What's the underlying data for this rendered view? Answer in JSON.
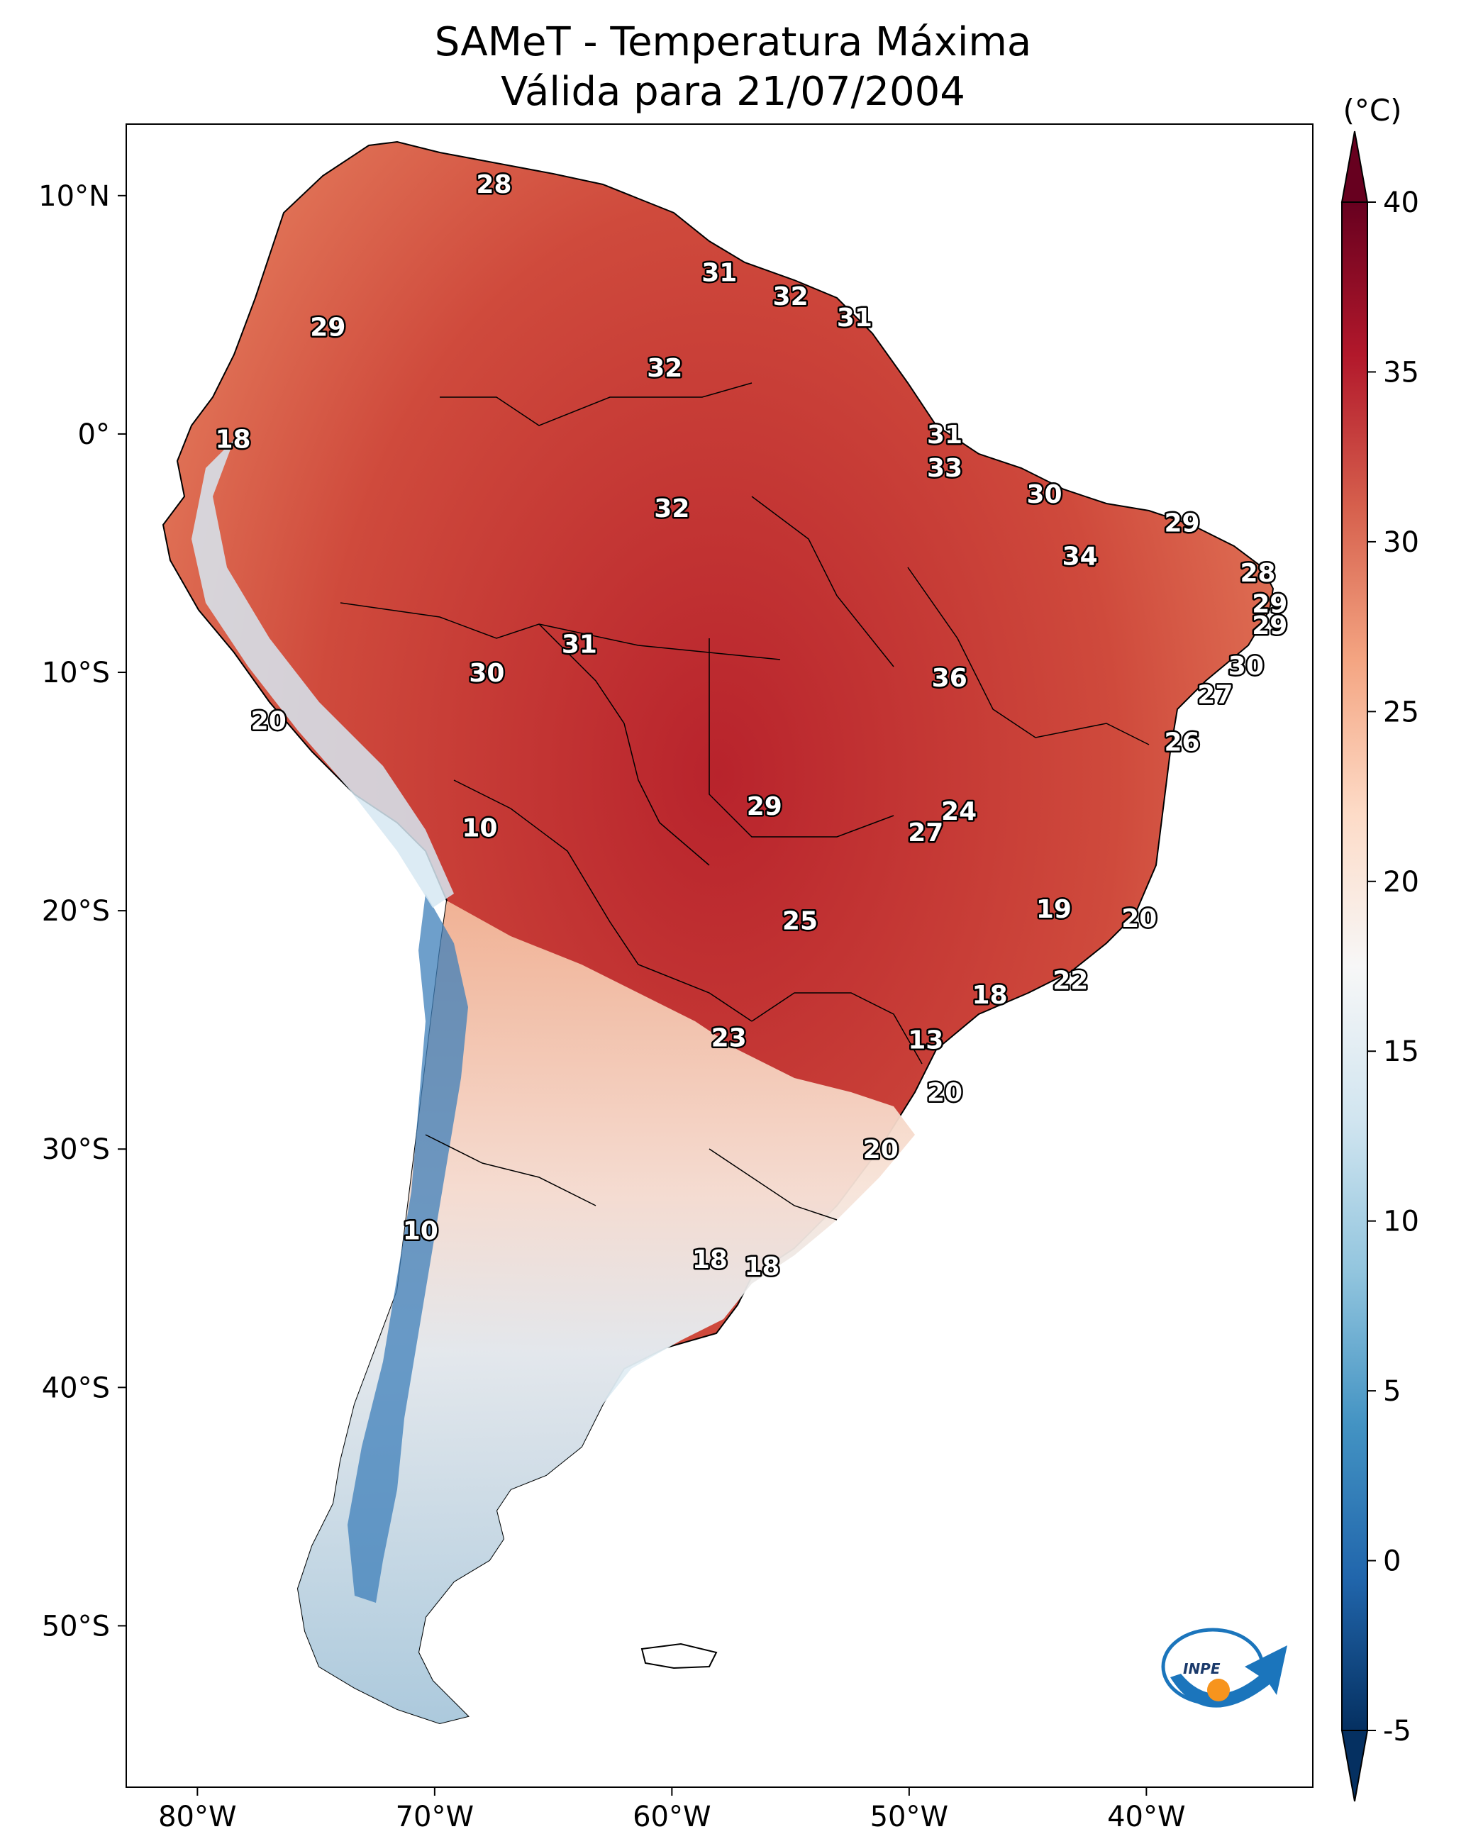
{
  "title_line1": "SAMeT - Temperatura Máxima",
  "title_line2": "Válida para 21/07/2004",
  "colorbar": {
    "unit": "(°C)",
    "min": -5,
    "max": 40,
    "ticks": [
      "40",
      "35",
      "30",
      "25",
      "20",
      "15",
      "10",
      "5",
      "0",
      "-5"
    ],
    "colors": [
      "#053061",
      "#2166ac",
      "#4393c3",
      "#92c5de",
      "#d1e5f0",
      "#f7f7f7",
      "#fddbc7",
      "#f4a582",
      "#d6604d",
      "#b2182b",
      "#67001f"
    ]
  },
  "axes": {
    "lon_labels": [
      "80°W",
      "70°W",
      "60°W",
      "50°W",
      "40°W"
    ],
    "lat_labels": [
      "10°N",
      "0°",
      "10°S",
      "20°S",
      "30°S",
      "40°S",
      "50°S"
    ]
  },
  "values": [
    {
      "t": "28",
      "lon": -67.5,
      "lat": 10.5
    },
    {
      "t": "29",
      "lon": -74.5,
      "lat": 4.5
    },
    {
      "t": "18",
      "lon": -78.5,
      "lat": -0.2
    },
    {
      "t": "31",
      "lon": -58.0,
      "lat": 6.8
    },
    {
      "t": "32",
      "lon": -55.0,
      "lat": 5.8
    },
    {
      "t": "31",
      "lon": -52.3,
      "lat": 4.9
    },
    {
      "t": "32",
      "lon": -60.3,
      "lat": 2.8
    },
    {
      "t": "31",
      "lon": -48.5,
      "lat": -0.0
    },
    {
      "t": "33",
      "lon": -48.5,
      "lat": -1.4
    },
    {
      "t": "30",
      "lon": -44.3,
      "lat": -2.5
    },
    {
      "t": "29",
      "lon": -38.5,
      "lat": -3.7
    },
    {
      "t": "32",
      "lon": -60.0,
      "lat": -3.1
    },
    {
      "t": "34",
      "lon": -42.8,
      "lat": -5.1
    },
    {
      "t": "28",
      "lon": -35.3,
      "lat": -5.8
    },
    {
      "t": "29",
      "lon": -34.8,
      "lat": -7.1
    },
    {
      "t": "29",
      "lon": -34.8,
      "lat": -8.0
    },
    {
      "t": "31",
      "lon": -63.9,
      "lat": -8.8
    },
    {
      "t": "30",
      "lon": -67.8,
      "lat": -10.0
    },
    {
      "t": "36",
      "lon": -48.3,
      "lat": -10.2
    },
    {
      "t": "30",
      "lon": -35.8,
      "lat": -9.7
    },
    {
      "t": "27",
      "lon": -37.1,
      "lat": -10.9
    },
    {
      "t": "20",
      "lon": -77.0,
      "lat": -12.0
    },
    {
      "t": "26",
      "lon": -38.5,
      "lat": -12.9
    },
    {
      "t": "24",
      "lon": -47.9,
      "lat": -15.8
    },
    {
      "t": "27",
      "lon": -49.3,
      "lat": -16.7
    },
    {
      "t": "29",
      "lon": -56.1,
      "lat": -15.6
    },
    {
      "t": "10",
      "lon": -68.1,
      "lat": -16.5
    },
    {
      "t": "19",
      "lon": -43.9,
      "lat": -19.9
    },
    {
      "t": "20",
      "lon": -40.3,
      "lat": -20.3
    },
    {
      "t": "25",
      "lon": -54.6,
      "lat": -20.4
    },
    {
      "t": "22",
      "lon": -43.2,
      "lat": -22.9
    },
    {
      "t": "18",
      "lon": -46.6,
      "lat": -23.5
    },
    {
      "t": "23",
      "lon": -57.6,
      "lat": -25.3
    },
    {
      "t": "13",
      "lon": -49.3,
      "lat": -25.4
    },
    {
      "t": "20",
      "lon": -48.5,
      "lat": -27.6
    },
    {
      "t": "20",
      "lon": -51.2,
      "lat": -30.0
    },
    {
      "t": "10",
      "lon": -70.6,
      "lat": -33.4
    },
    {
      "t": "18",
      "lon": -58.4,
      "lat": -34.6
    },
    {
      "t": "18",
      "lon": -56.2,
      "lat": -34.9
    }
  ]
}
